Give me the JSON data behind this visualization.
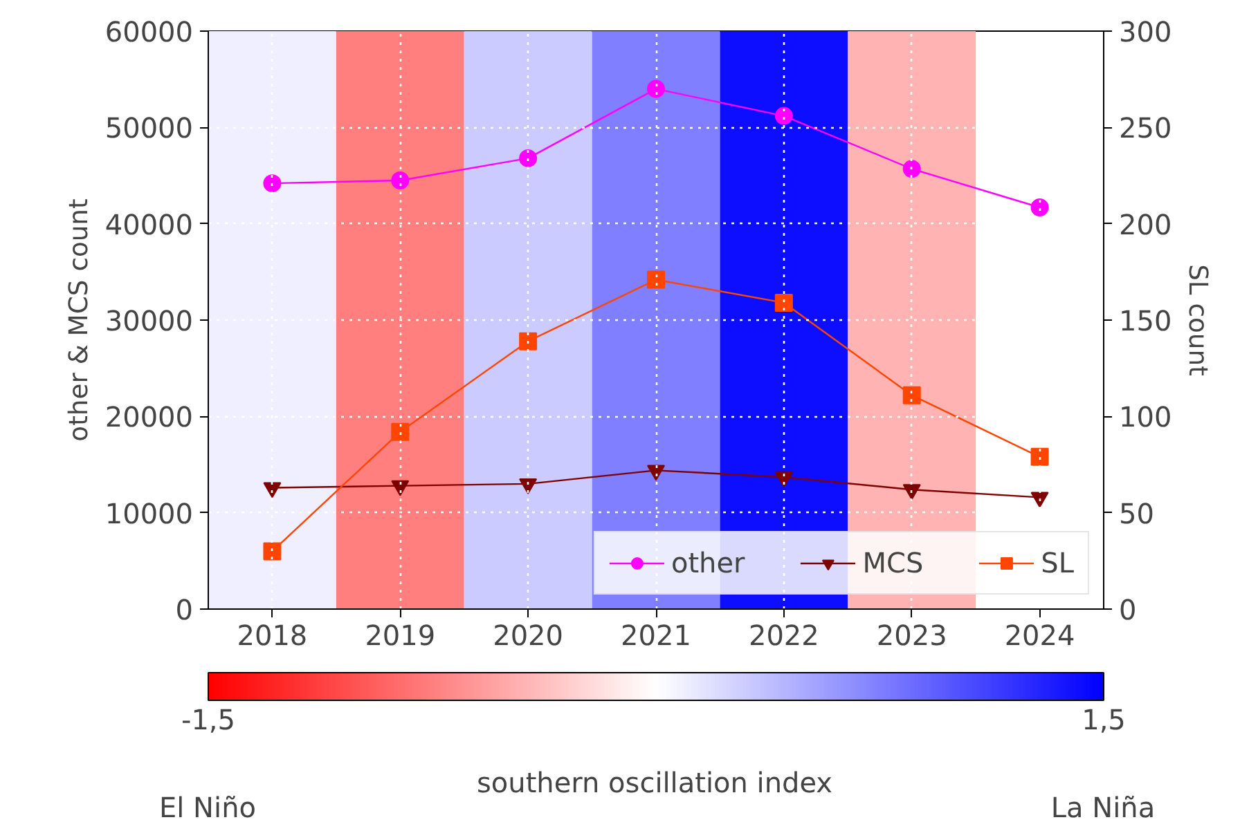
{
  "chart_data": {
    "type": "line",
    "ylabel": "other & MCS count",
    "y2label": "SL count",
    "clabel": "southern oscillation index",
    "x": [
      2018,
      2019,
      2020,
      2021,
      2022,
      2023,
      2024
    ],
    "series": [
      {
        "name": "other",
        "color": "#ff00ff",
        "marker": "circle",
        "values": [
          44200,
          44500,
          46800,
          54000,
          51200,
          45700,
          41700
        ]
      },
      {
        "name": "MCS",
        "color": "#7f0000",
        "marker": "triangle",
        "values": [
          12600,
          12800,
          13000,
          14400,
          13700,
          12400,
          11600
        ]
      },
      {
        "name": "SL",
        "color": "#ff4500",
        "marker": "square",
        "axis": "y2",
        "values": [
          30,
          92,
          139,
          171,
          159,
          111,
          79
        ]
      }
    ],
    "xlim": [
      2017.5,
      2024.5
    ],
    "xticks": [
      2018,
      2019,
      2020,
      2021,
      2022,
      2023,
      2024
    ],
    "ylim": [
      0,
      60000
    ],
    "yticks": [
      0,
      10000,
      20000,
      30000,
      40000,
      50000,
      60000
    ],
    "y2lim": [
      0,
      300
    ],
    "y2ticks": [
      0,
      50,
      100,
      150,
      200,
      250,
      300
    ],
    "bands": [
      {
        "axis": "x",
        "from": 2017.5,
        "to": 2018.5,
        "color": "#efefff"
      },
      {
        "axis": "x",
        "from": 2018.5,
        "to": 2019.5,
        "color": "#ff7f7f"
      },
      {
        "axis": "x",
        "from": 2019.5,
        "to": 2020.5,
        "color": "#cbcbff"
      },
      {
        "axis": "x",
        "from": 2020.5,
        "to": 2021.5,
        "color": "#7f7fff"
      },
      {
        "axis": "x",
        "from": 2021.5,
        "to": 2022.5,
        "color": "#0d0dff"
      },
      {
        "axis": "x",
        "from": 2022.5,
        "to": 2023.5,
        "color": "#ffb3b3"
      }
    ],
    "clim": [
      -1.5,
      1.5
    ],
    "cticks": [
      {
        "value": -1.5,
        "label": "-1,5"
      },
      {
        "value": 1.5,
        "label": "1,5"
      }
    ],
    "annotations": [
      "El Niño",
      "La Niña"
    ],
    "grid": true,
    "legend": "bottom right",
    "line_style": "solid"
  }
}
